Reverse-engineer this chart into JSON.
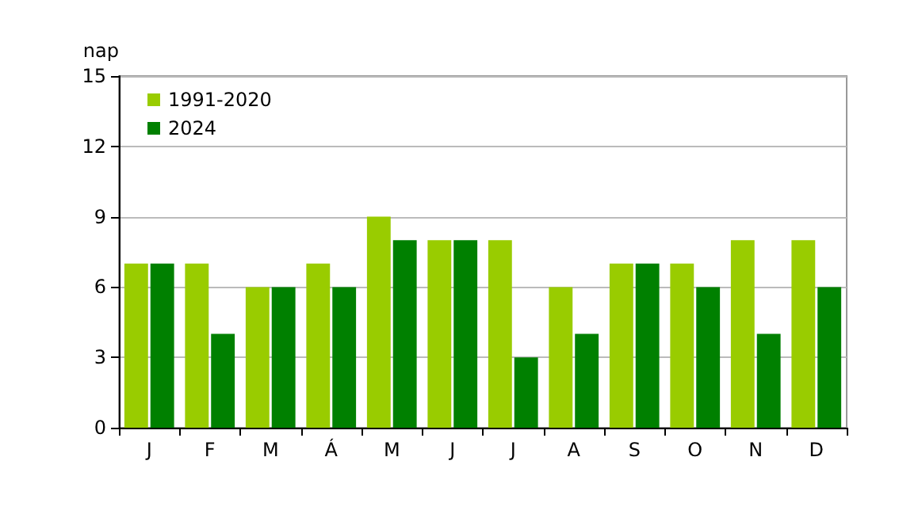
{
  "chart_data": {
    "type": "bar",
    "ylabel": "nap",
    "categories": [
      "J",
      "F",
      "M",
      "Á",
      "M",
      "J",
      "J",
      "A",
      "S",
      "O",
      "N",
      "D"
    ],
    "series": [
      {
        "name": "1991-2020",
        "color": "#99cc00",
        "values": [
          7,
          7,
          6,
          7,
          9,
          8,
          8,
          6,
          7,
          7,
          8,
          8
        ]
      },
      {
        "name": "2024",
        "color": "#008000",
        "values": [
          7,
          4,
          6,
          6,
          8,
          8,
          3,
          4,
          7,
          6,
          4,
          6
        ]
      }
    ],
    "ylim": [
      0,
      15
    ],
    "yticks": [
      0,
      3,
      6,
      9,
      12,
      15
    ],
    "grid": "y",
    "legend": "top left"
  }
}
